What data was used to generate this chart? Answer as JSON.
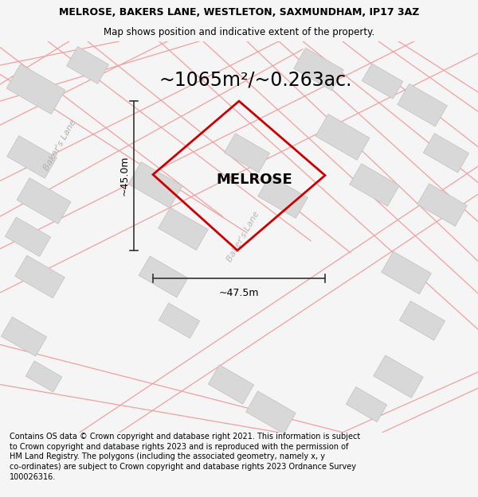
{
  "title_line1": "MELROSE, BAKERS LANE, WESTLETON, SAXMUNDHAM, IP17 3AZ",
  "title_line2": "Map shows position and indicative extent of the property.",
  "area_label": "~1065m²/~0.263ac.",
  "property_name": "MELROSE",
  "width_label": "~47.5m",
  "height_label": "~45.0m",
  "road_label": "Baker's Lane",
  "bg_color": "#f5f5f5",
  "map_bg": "#ffffff",
  "plot_line_color": "#f0a0a0",
  "building_color": "#d8d8d8",
  "building_edge": "#c0c0c0",
  "property_outline_color": "#cc0000",
  "dim_line_color": "#333333",
  "title_fontsize": 9,
  "subtitle_fontsize": 8.5,
  "area_fontsize": 17,
  "property_name_fontsize": 13,
  "dim_fontsize": 9,
  "road_label_fontsize": 8,
  "footer_fontsize": 7,
  "footer_lines": [
    "Contains OS data © Crown copyright and database right 2021. This information is subject",
    "to Crown copyright and database rights 2023 and is reproduced with the permission of",
    "HM Land Registry. The polygons (including the associated geometry, namely x, y",
    "co-ordinates) are subject to Crown copyright and database rights 2023 Ordnance Survey",
    "100026316."
  ]
}
